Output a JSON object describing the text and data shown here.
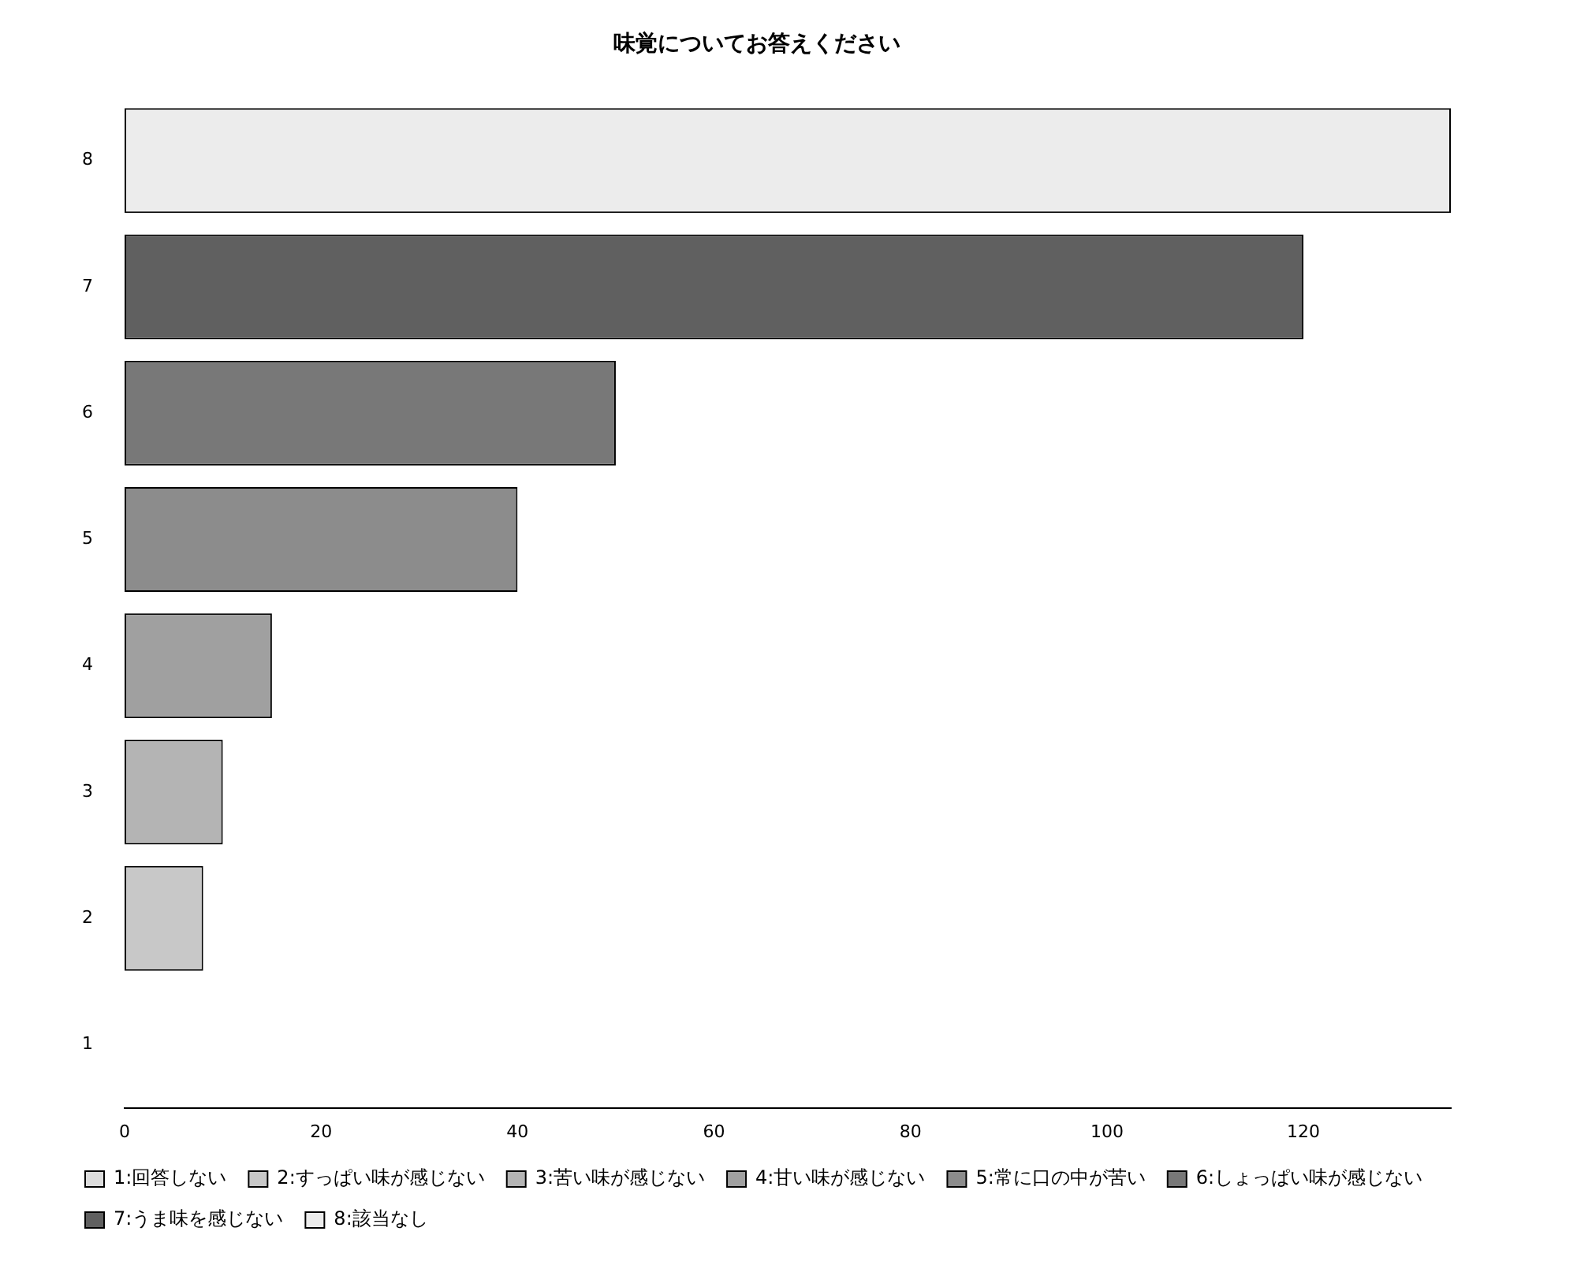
{
  "chart_data": {
    "type": "bar",
    "title": "味覚についてお答えください",
    "orientation": "horizontal",
    "stacked": true,
    "categories": [
      "8",
      "7",
      "6",
      "5",
      "4",
      "3",
      "2",
      "1"
    ],
    "series": [
      {
        "name": "1:回答しない",
        "color": "#dcdcdc",
        "values": [
          null,
          null,
          null,
          null,
          null,
          null,
          null,
          0
        ]
      },
      {
        "name": "2:すっぱい味が感じない",
        "color": "#c8c8c8",
        "values": [
          null,
          null,
          null,
          null,
          null,
          null,
          8,
          null
        ]
      },
      {
        "name": "3:苦い味が感じない",
        "color": "#b4b4b4",
        "values": [
          null,
          null,
          null,
          null,
          null,
          10,
          null,
          null
        ]
      },
      {
        "name": "4:甘い味が感じない",
        "color": "#a0a0a0",
        "values": [
          null,
          null,
          null,
          null,
          15,
          null,
          null,
          null
        ]
      },
      {
        "name": "5:常に口の中が苦い",
        "color": "#8c8c8c",
        "values": [
          null,
          null,
          null,
          40,
          null,
          null,
          null,
          null
        ]
      },
      {
        "name": "6:しょっぱい味が感じない",
        "color": "#787878",
        "values": [
          null,
          null,
          50,
          null,
          null,
          null,
          null,
          null
        ]
      },
      {
        "name": "7:うま味を感じない",
        "color": "#606060",
        "values": [
          null,
          120,
          null,
          null,
          null,
          null,
          null,
          null
        ]
      },
      {
        "name": "8:該当なし",
        "color": "#ececec",
        "values": [
          135,
          null,
          null,
          null,
          null,
          null,
          null,
          null
        ]
      }
    ],
    "xlim": [
      0,
      135
    ],
    "xticks": [
      0,
      20,
      40,
      60,
      80,
      100,
      120
    ],
    "grid": false,
    "legend": "bottom left"
  }
}
